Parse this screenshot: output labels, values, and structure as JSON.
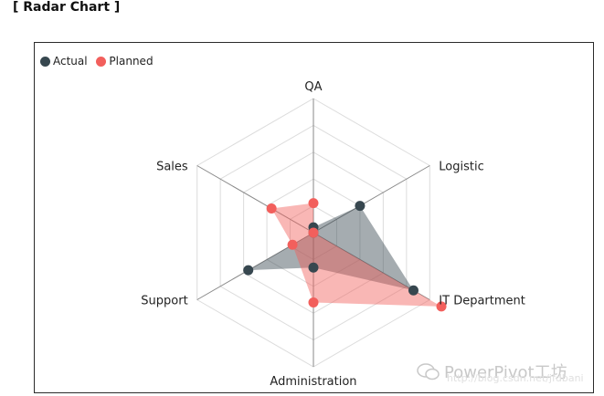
{
  "page": {
    "heading": "[ Radar Chart ]"
  },
  "watermark": {
    "text": "PowerPivot工坊",
    "url": "http://blog.csdn.net/jfdbani"
  },
  "chart_data": {
    "type": "radar",
    "axes": [
      "QA",
      "Logistic",
      "IT Department",
      "Administration",
      "Support",
      "Sales"
    ],
    "max": 5,
    "levels": 5,
    "series": [
      {
        "name": "Actual",
        "color": "#37474f",
        "values": [
          0.2,
          2.0,
          4.3,
          1.3,
          2.8,
          0.0
        ]
      },
      {
        "name": "Planned",
        "color": "#f25f5c",
        "values": [
          1.1,
          0.0,
          5.5,
          2.6,
          0.9,
          1.8
        ]
      }
    ],
    "legend_position": "top-left",
    "grid": true
  }
}
